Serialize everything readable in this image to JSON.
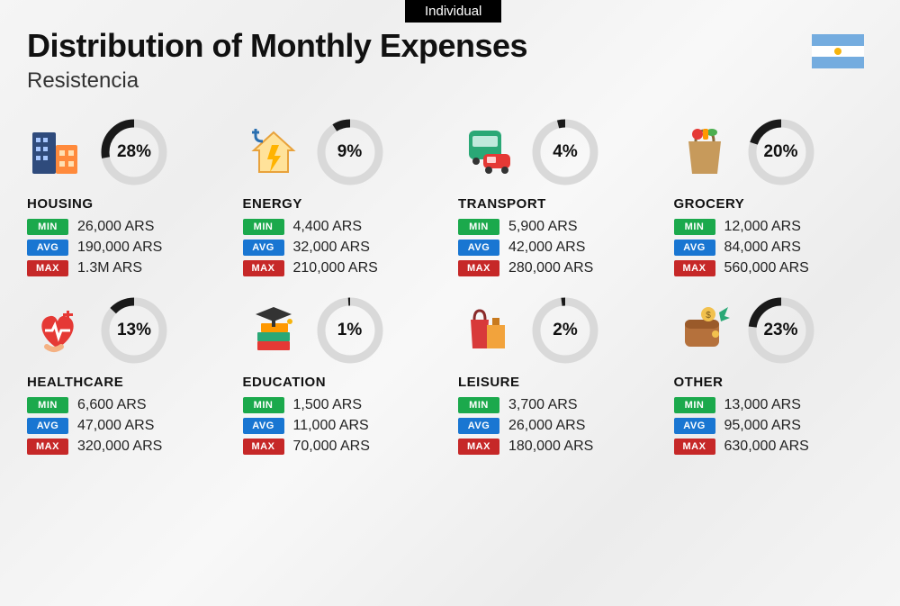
{
  "tab": "Individual",
  "title": "Distribution of Monthly Expenses",
  "subtitle": "Resistencia",
  "currency": "ARS",
  "labels": {
    "min": "MIN",
    "avg": "AVG",
    "max": "MAX"
  },
  "badge_colors": {
    "min": "#1ba94c",
    "avg": "#1976d2",
    "max": "#c62828"
  },
  "ring": {
    "bg_color": "#d9d9d9",
    "fg_color": "#1a1a1a",
    "stroke_width": 9,
    "radius": 32,
    "size": 74
  },
  "flag": {
    "blue": "#74acdf",
    "white": "#ffffff",
    "sun": "#f6b40e"
  },
  "background_gradient": [
    "#f5f5f5",
    "#eeeeee",
    "#f8f8f8",
    "#ececec",
    "#f5f5f5"
  ],
  "categories": [
    {
      "name": "HOUSING",
      "percent": 28,
      "min": "26,000 ARS",
      "avg": "190,000 ARS",
      "max": "1.3M ARS",
      "icon": "housing"
    },
    {
      "name": "ENERGY",
      "percent": 9,
      "min": "4,400 ARS",
      "avg": "32,000 ARS",
      "max": "210,000 ARS",
      "icon": "energy"
    },
    {
      "name": "TRANSPORT",
      "percent": 4,
      "min": "5,900 ARS",
      "avg": "42,000 ARS",
      "max": "280,000 ARS",
      "icon": "transport"
    },
    {
      "name": "GROCERY",
      "percent": 20,
      "min": "12,000 ARS",
      "avg": "84,000 ARS",
      "max": "560,000 ARS",
      "icon": "grocery"
    },
    {
      "name": "HEALTHCARE",
      "percent": 13,
      "min": "6,600 ARS",
      "avg": "47,000 ARS",
      "max": "320,000 ARS",
      "icon": "healthcare"
    },
    {
      "name": "EDUCATION",
      "percent": 1,
      "min": "1,500 ARS",
      "avg": "11,000 ARS",
      "max": "70,000 ARS",
      "icon": "education"
    },
    {
      "name": "LEISURE",
      "percent": 2,
      "min": "3,700 ARS",
      "avg": "26,000 ARS",
      "max": "180,000 ARS",
      "icon": "leisure"
    },
    {
      "name": "OTHER",
      "percent": 23,
      "min": "13,000 ARS",
      "avg": "95,000 ARS",
      "max": "630,000 ARS",
      "icon": "other"
    }
  ]
}
